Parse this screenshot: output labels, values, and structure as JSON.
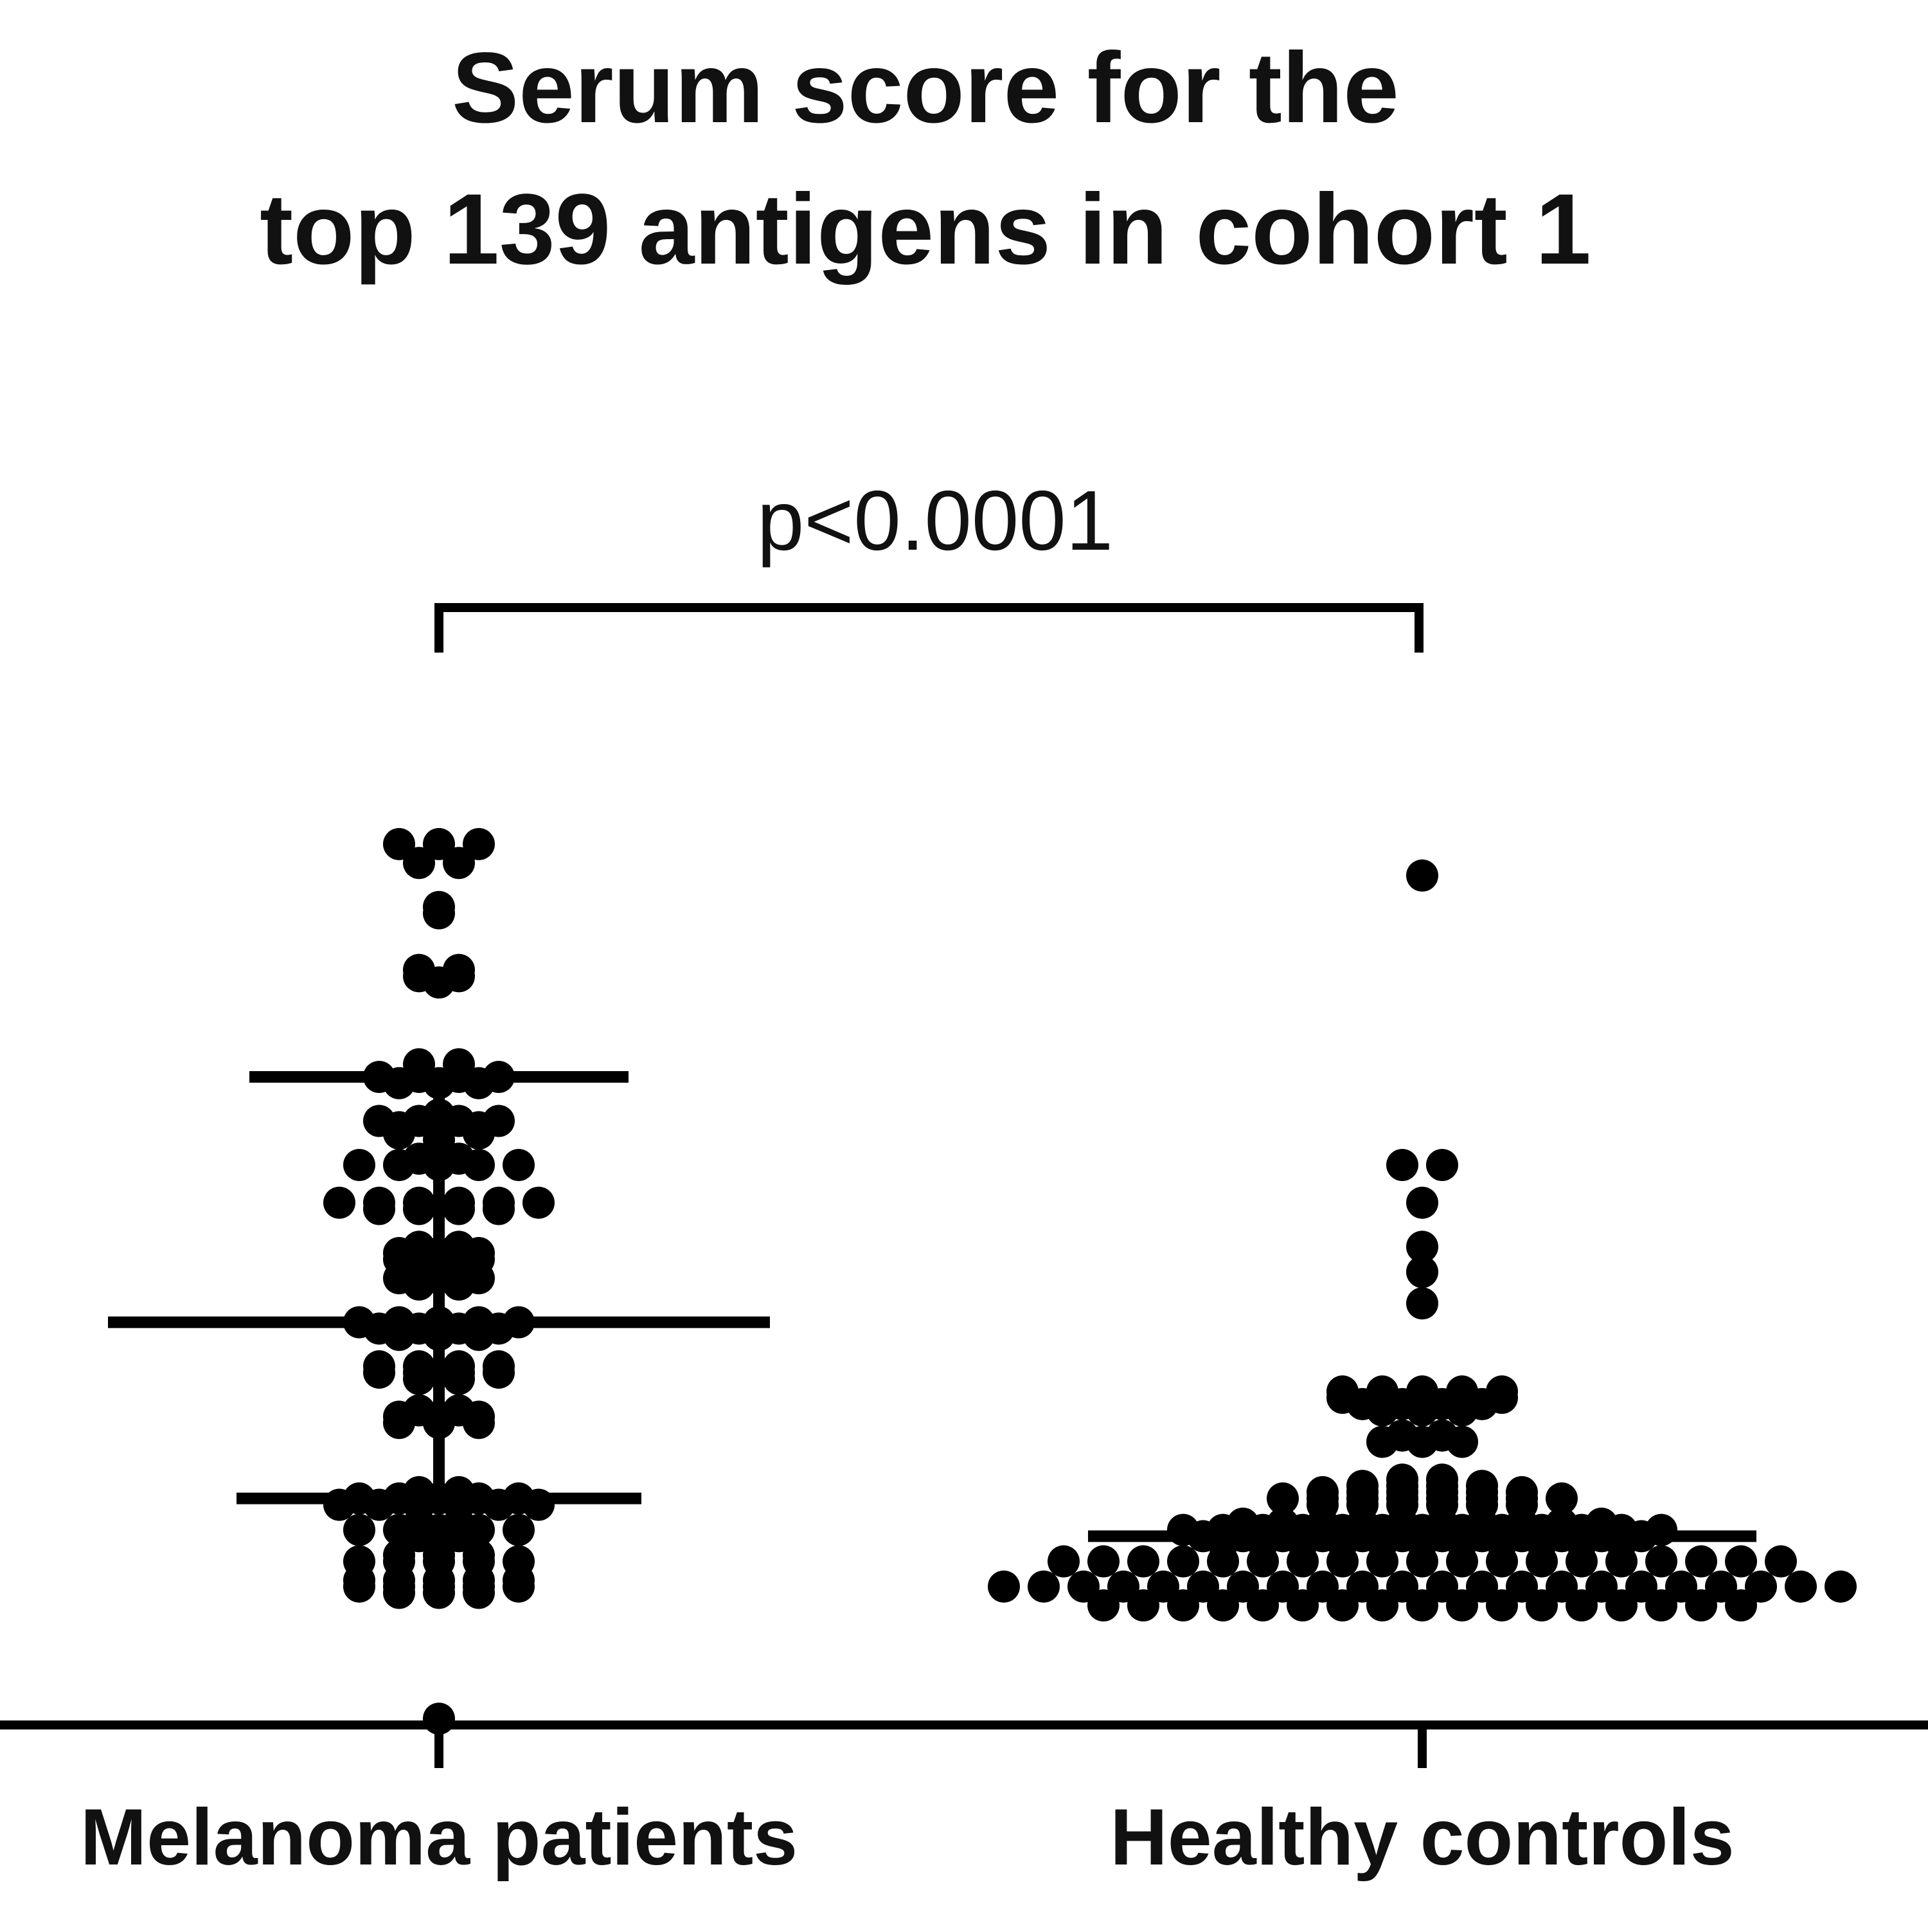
{
  "chart_data": {
    "type": "scatter",
    "title_lines": [
      "Serum score for the",
      "top 139 antigens in cohort 1"
    ],
    "xlabel": "",
    "ylabel": "",
    "categories": [
      "Melanoma patients",
      "Healthy controls"
    ],
    "ylim": [
      0,
      15
    ],
    "grid": false,
    "legend": "none",
    "annotation": "p<0.0001",
    "colors": {
      "points": "#000000",
      "axis": "#000000",
      "text": "#111111",
      "background": "#ffffff"
    },
    "series": [
      {
        "values": [
          14.0,
          14.0,
          14.0,
          13.7,
          13.7,
          13.0,
          12.9,
          12.0,
          12.0,
          11.9,
          11.9,
          11.8,
          10.5,
          10.5,
          10.4,
          10.4,
          10.3,
          10.3,
          10.3,
          10.3,
          10.2,
          10.2,
          10.2,
          9.7,
          9.6,
          9.6,
          9.6,
          9.6,
          9.5,
          9.5,
          9.5,
          9.4,
          9.4,
          9.4,
          9.3,
          9.0,
          9.0,
          8.9,
          8.9,
          8.9,
          8.9,
          8.9,
          8.3,
          8.3,
          8.3,
          8.3,
          8.3,
          8.3,
          8.2,
          8.2,
          8.2,
          8.2,
          7.6,
          7.6,
          7.5,
          7.5,
          7.5,
          7.4,
          7.4,
          7.4,
          7.2,
          7.2,
          7.1,
          7.1,
          7.1,
          7.0,
          7.0,
          6.4,
          6.4,
          6.4,
          6.4,
          6.4,
          6.3,
          6.3,
          6.3,
          6.3,
          6.2,
          6.2,
          6.2,
          5.7,
          5.7,
          5.7,
          5.7,
          5.6,
          5.6,
          5.6,
          5.6,
          5.5,
          5.5,
          5.0,
          5.0,
          4.9,
          4.9,
          4.9,
          4.8,
          4.8,
          4.8,
          3.7,
          3.7,
          3.6,
          3.6,
          3.6,
          3.6,
          3.6,
          3.5,
          3.5,
          3.5,
          3.5,
          3.5,
          3.5,
          3.2,
          3.2,
          3.1,
          3.1,
          3.1,
          3.1,
          3.1,
          3.0,
          3.0,
          2.7,
          2.7,
          2.7,
          2.6,
          2.6,
          2.6,
          2.6,
          2.6,
          2.3,
          2.3,
          2.3,
          2.3,
          2.3,
          2.2,
          2.2,
          2.2,
          2.2,
          2.2,
          2.1,
          2.1,
          2.1,
          0.1
        ],
        "mean": 6.4,
        "sd_low": 3.6,
        "sd_high": 10.3
      },
      {
        "values": [
          13.5,
          8.9,
          8.9,
          8.3,
          7.6,
          7.2,
          6.7,
          5.3,
          5.3,
          5.3,
          5.3,
          5.3,
          5.2,
          5.2,
          5.2,
          5.2,
          5.2,
          5.1,
          5.1,
          5.1,
          5.1,
          5.0,
          5.0,
          5.0,
          4.6,
          4.6,
          4.5,
          4.5,
          4.5,
          3.9,
          3.9,
          3.8,
          3.8,
          3.8,
          3.8,
          3.7,
          3.7,
          3.7,
          3.7,
          3.7,
          3.7,
          3.6,
          3.6,
          3.6,
          3.6,
          3.6,
          3.6,
          3.6,
          3.6,
          3.5,
          3.5,
          3.5,
          3.5,
          3.5,
          3.5,
          3.2,
          3.2,
          3.2,
          3.2,
          3.2,
          3.2,
          3.2,
          3.2,
          3.2,
          3.2,
          3.1,
          3.1,
          3.1,
          3.1,
          3.1,
          3.1,
          3.1,
          3.1,
          3.1,
          3.1,
          3.1,
          3.1,
          3.1,
          3.0,
          3.0,
          3.0,
          3.0,
          3.0,
          3.0,
          3.0,
          3.0,
          3.0,
          3.0,
          3.0,
          3.0,
          2.9,
          2.9,
          2.9,
          2.9,
          2.9,
          2.9,
          2.9,
          2.9,
          2.9,
          2.9,
          2.9,
          2.6,
          2.6,
          2.6,
          2.6,
          2.6,
          2.6,
          2.6,
          2.6,
          2.6,
          2.6,
          2.6,
          2.6,
          2.6,
          2.6,
          2.6,
          2.6,
          2.6,
          2.6,
          2.6,
          2.2,
          2.2,
          2.2,
          2.2,
          2.2,
          2.2,
          2.2,
          2.2,
          2.2,
          2.2,
          2.2,
          2.2,
          2.2,
          2.2,
          2.2,
          2.2,
          2.2,
          2.2,
          2.2,
          2.2,
          2.2,
          2.2,
          1.9,
          1.9,
          1.9,
          1.9,
          1.9,
          1.9,
          1.9,
          1.9,
          1.9,
          1.9,
          1.9,
          1.9,
          1.9,
          1.9,
          1.9,
          1.9,
          1.9
        ],
        "mean": 3.0
      }
    ]
  }
}
